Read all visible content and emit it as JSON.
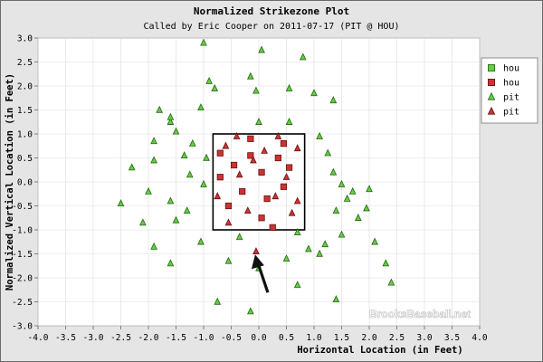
{
  "colors": {
    "frame_bg": "#e5e5e5",
    "plot_bg": "#ffffff",
    "grid": "#dddddd",
    "zone": "#000000",
    "green_fill": "#66cc44",
    "green_stroke": "#226611",
    "red_fill": "#cc3333",
    "red_stroke": "#661111",
    "arrow": "#111111"
  },
  "chart_data": {
    "type": "scatter",
    "title": "Normalized Strikezone Plot",
    "subtitle": "Called by Eric Cooper on 2011-07-17 (PIT @ HOU)",
    "xlabel": "Horizontal Location (in Feet)",
    "ylabel": "Normalized Vertical Location (in Feet)",
    "xlim": [
      -4.0,
      4.0
    ],
    "ylim": [
      -3.0,
      3.0
    ],
    "x_ticks": [
      "-4.0",
      "-3.5",
      "-3.0",
      "-2.5",
      "-2.0",
      "-1.5",
      "-1.0",
      "-0.5",
      "0.0",
      "0.5",
      "1.0",
      "1.5",
      "2.0",
      "2.5",
      "3.0",
      "3.5",
      "4.0"
    ],
    "y_ticks": [
      "3.0",
      "2.5",
      "2.0",
      "1.5",
      "1.0",
      "0.5",
      "0.0",
      "-0.5",
      "-1.0",
      "-1.5",
      "-2.0",
      "-2.5",
      "-3.0"
    ],
    "grid": true,
    "legend_position": "top-right",
    "watermark": "BrooksBaseball.net",
    "strike_zone": {
      "x": [
        -0.83,
        0.83
      ],
      "y": [
        -1.0,
        1.0
      ]
    },
    "annotation": {
      "type": "arrow",
      "points_to": [
        -0.1,
        -1.4
      ]
    },
    "series": [
      {
        "name": "hou",
        "marker": "square",
        "color": "green",
        "points": []
      },
      {
        "name": "hou",
        "marker": "square",
        "color": "red",
        "points": [
          [
            -0.7,
            0.6
          ],
          [
            -0.45,
            0.35
          ],
          [
            -0.15,
            0.55
          ],
          [
            0.05,
            0.2
          ],
          [
            0.35,
            0.5
          ],
          [
            0.55,
            0.3
          ],
          [
            -0.3,
            -0.2
          ],
          [
            0.15,
            -0.35
          ],
          [
            0.45,
            -0.1
          ],
          [
            -0.55,
            -0.5
          ],
          [
            0.05,
            -0.75
          ],
          [
            -0.15,
            0.9
          ],
          [
            0.45,
            0.8
          ],
          [
            -0.7,
            0.1
          ],
          [
            0.25,
            -0.95
          ]
        ]
      },
      {
        "name": "pit",
        "marker": "triangle",
        "color": "green",
        "points": [
          [
            -1.0,
            2.9
          ],
          [
            -0.9,
            2.1
          ],
          [
            -0.15,
            2.2
          ],
          [
            0.05,
            2.75
          ],
          [
            0.8,
            2.6
          ],
          [
            -0.8,
            1.95
          ],
          [
            -0.05,
            1.9
          ],
          [
            0.55,
            1.95
          ],
          [
            1.0,
            1.85
          ],
          [
            1.35,
            1.7
          ],
          [
            -2.3,
            0.3
          ],
          [
            -1.9,
            0.85
          ],
          [
            -1.6,
            1.25
          ],
          [
            -1.35,
            0.55
          ],
          [
            -2.0,
            -0.2
          ],
          [
            -1.8,
            1.5
          ],
          [
            -1.5,
            1.05
          ],
          [
            -1.2,
            0.8
          ],
          [
            -1.6,
            -0.4
          ],
          [
            -1.3,
            -0.6
          ],
          [
            -1.0,
            -0.05
          ],
          [
            -1.25,
            0.15
          ],
          [
            -0.95,
            0.5
          ],
          [
            1.1,
            0.95
          ],
          [
            1.25,
            0.6
          ],
          [
            1.35,
            0.2
          ],
          [
            1.5,
            -0.05
          ],
          [
            1.6,
            -0.35
          ],
          [
            1.4,
            -0.6
          ],
          [
            1.7,
            -0.2
          ],
          [
            2.0,
            -0.15
          ],
          [
            1.8,
            -0.75
          ],
          [
            1.5,
            -1.1
          ],
          [
            2.1,
            -1.25
          ],
          [
            1.2,
            -1.3
          ],
          [
            1.1,
            -1.5
          ],
          [
            -1.9,
            -1.35
          ],
          [
            -1.6,
            -1.7
          ],
          [
            -1.05,
            -1.25
          ],
          [
            -0.55,
            -1.65
          ],
          [
            0.0,
            -1.8
          ],
          [
            0.5,
            -1.6
          ],
          [
            0.9,
            -1.4
          ],
          [
            2.4,
            -2.1
          ],
          [
            1.4,
            -2.45
          ],
          [
            -0.75,
            -2.5
          ],
          [
            0.7,
            -2.15
          ],
          [
            -0.15,
            -2.7
          ],
          [
            0.0,
            1.25
          ],
          [
            0.55,
            1.25
          ],
          [
            -0.35,
            -1.15
          ],
          [
            0.7,
            -1.05
          ],
          [
            -1.6,
            1.35
          ],
          [
            -1.9,
            0.45
          ],
          [
            -2.5,
            -0.45
          ],
          [
            -2.1,
            -0.85
          ],
          [
            -1.5,
            -0.8
          ],
          [
            1.95,
            -0.55
          ],
          [
            2.3,
            -1.7
          ],
          [
            -1.05,
            1.55
          ]
        ]
      },
      {
        "name": "pit",
        "marker": "triangle",
        "color": "red",
        "points": [
          [
            -0.6,
            0.75
          ],
          [
            -0.35,
            0.15
          ],
          [
            -0.1,
            0.45
          ],
          [
            0.1,
            0.65
          ],
          [
            0.3,
            -0.3
          ],
          [
            0.5,
            0.1
          ],
          [
            0.7,
            0.7
          ],
          [
            -0.75,
            -0.3
          ],
          [
            -0.55,
            -0.85
          ],
          [
            -0.2,
            -0.6
          ],
          [
            0.6,
            -0.65
          ],
          [
            -0.05,
            -1.45
          ],
          [
            0.35,
            0.95
          ],
          [
            -0.4,
            0.95
          ],
          [
            0.7,
            -0.4
          ]
        ]
      }
    ]
  }
}
